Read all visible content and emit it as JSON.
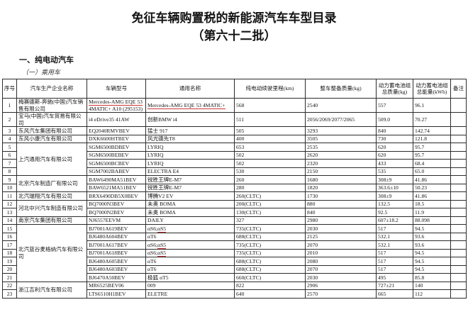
{
  "document": {
    "title": "免征车辆购置税的新能源汽车车型目录",
    "subtitle": "（第六十二批）",
    "section": "一、纯电动汽车",
    "subsection": "（一）乘用车"
  },
  "colors": {
    "spellcheck_underline": "#cc3333",
    "table_border": "#2b2b2b",
    "text": "#141414"
  },
  "table": {
    "headers": [
      "序号",
      "汽车生产企业名称",
      "车辆型号",
      "通用名称",
      "纯电动续驶里程(km)",
      "整车整备质量(kg)",
      "动力蓄电池组总质量(kg)",
      "动力蓄电池组总能量(kWh)",
      "备注"
    ],
    "rows": [
      {
        "no": "1",
        "manufacturer": "梅赛德斯-奔驰(中国)汽车销售有限公司",
        "manufacturer_span": 1,
        "model": "Mercedes-AMG EQE 53 4MATIC+ A10 (295153)",
        "model_mark": "Mercedes-AMG EQE 53 4MATIC+ A10 (295153)",
        "name": "Mercedes-AMG EQE 53 4MATIC+",
        "name_mark": "Mercedes-AMG EQE 53 4MATIC+",
        "range": "568",
        "mass": "2540",
        "battery_mass": "557",
        "energy": "96.1",
        "note": ""
      },
      {
        "no": "2",
        "manufacturer": "宝马(中国)汽车贸易有限公司",
        "manufacturer_span": 1,
        "model": "i4 eDrive35 41AW",
        "model_mark": null,
        "name": "创新BMW i4",
        "name_mark": null,
        "range": "511",
        "mass": "2056/2069/2077/2065",
        "battery_mass": "509.0",
        "energy": "70.27",
        "note": ""
      },
      {
        "no": "3",
        "manufacturer": "东风汽车集团有限公司",
        "manufacturer_span": 1,
        "model": "EQ2040RMVBEV",
        "model_mark": null,
        "name": "猛士 917",
        "name_mark": null,
        "range": "505",
        "mass": "3293",
        "battery_mass": "840",
        "energy": "142.74",
        "note": ""
      },
      {
        "no": "4",
        "manufacturer": "东风小康汽车有限公司",
        "manufacturer_span": 1,
        "model": "DXK6600HTBEV",
        "model_mark": null,
        "name": "风光德先T8",
        "name_mark": null,
        "range": "400",
        "mass": "3505",
        "battery_mass": "730",
        "energy": "121.8",
        "note": ""
      },
      {
        "no": "5",
        "manufacturer": "上汽通用汽车有限公司",
        "manufacturer_span": 4,
        "model": "SGM6500BDBEV",
        "model_mark": null,
        "name": "LYRIQ",
        "name_mark": null,
        "range": "653",
        "mass": "2535",
        "battery_mass": "620",
        "energy": "95.7",
        "note": ""
      },
      {
        "no": "6",
        "manufacturer": null,
        "model": "SGM6500BEBEV",
        "model_mark": null,
        "name": "LYRIQ",
        "name_mark": null,
        "range": "502",
        "mass": "2620",
        "battery_mass": "620",
        "energy": "95.7",
        "note": ""
      },
      {
        "no": "7",
        "manufacturer": null,
        "model": "SGM6500BCBEV",
        "model_mark": null,
        "name": "LYRIQ",
        "name_mark": null,
        "range": "502",
        "mass": "2320",
        "battery_mass": "433",
        "energy": "68.4",
        "note": ""
      },
      {
        "no": "8",
        "manufacturer": null,
        "model": "SGM7002BABEV",
        "model_mark": null,
        "name": "ELECTRA E4",
        "name_mark": null,
        "range": "530",
        "mass": "2150",
        "battery_mass": "535",
        "energy": "65.0",
        "note": ""
      },
      {
        "no": "9",
        "manufacturer": "北京汽车制造厂有限公司",
        "manufacturer_span": 2,
        "model": "BAW6490MA51BEV",
        "model_mark": null,
        "name": "锐胜王牌E-M7",
        "name_mark": null,
        "range": "260",
        "mass": "1680",
        "battery_mass": "308±9",
        "energy": "41.86",
        "note": ""
      },
      {
        "no": "10",
        "manufacturer": null,
        "model": "BAW6521MA51BEV",
        "model_mark": null,
        "name": "锐胜王牌E-M7",
        "name_mark": null,
        "range": "280",
        "mass": "1820",
        "battery_mass": "363.6±10",
        "energy": "50.23",
        "note": ""
      },
      {
        "no": "11",
        "manufacturer": "北汽瑞翔汽车有限公司",
        "manufacturer_span": 1,
        "model": "BRX6490DB5X0BEV",
        "model_mark": null,
        "name": "博腾V2 EV",
        "name_mark": null,
        "range": "260(CLTC)",
        "mass": "1730",
        "battery_mass": "308±9",
        "energy": "41.86",
        "note": ""
      },
      {
        "no": "12",
        "manufacturer": "河北中兴汽车制造有限公司",
        "manufacturer_span": 2,
        "model": "BQ7000N3BEV",
        "model_mark": null,
        "name": "未奥 BOMA",
        "name_mark": null,
        "range": "200(CLTC)",
        "mass": "880",
        "battery_mass": "132.5",
        "energy": "18.5",
        "note": ""
      },
      {
        "no": "13",
        "manufacturer": null,
        "model": "BQ7000N2BEV",
        "model_mark": null,
        "name": "未奥 BOMA",
        "name_mark": null,
        "range": "130(CLTC)",
        "mass": "840",
        "battery_mass": "92.5",
        "energy": "11.9",
        "note": ""
      },
      {
        "no": "14",
        "manufacturer": "南京汽车集团有限公司",
        "manufacturer_span": 1,
        "model": "NJ6557EEVM",
        "model_mark": null,
        "name": "DAILY",
        "name_mark": null,
        "range": "327",
        "mass": "2980",
        "battery_mass": "607±18.2",
        "energy": "88.098",
        "note": ""
      },
      {
        "no": "15",
        "manufacturer": "北汽蓝谷麦格纳汽车有限公司",
        "manufacturer_span": 7,
        "model": "BJ7001A619BEV",
        "model_mark": null,
        "name": "αS6;αS5",
        "name_mark": "αS5",
        "range": "735(CLTC)",
        "mass": "2030",
        "battery_mass": "517",
        "energy": "94.5",
        "note": ""
      },
      {
        "no": "16",
        "manufacturer": null,
        "model": "BJ6480A604BEV",
        "model_mark": null,
        "name": "αT6",
        "name_mark": null,
        "range": "688(CLTC)",
        "mass": "2125",
        "battery_mass": "532.1",
        "energy": "93.6",
        "note": ""
      },
      {
        "no": "17",
        "manufacturer": null,
        "model": "BJ7001A617BEV",
        "model_mark": null,
        "name": "αS6;αS5",
        "name_mark": "αS5",
        "range": "735(CLTC)",
        "mass": "2070",
        "battery_mass": "532.1",
        "energy": "93.6",
        "note": ""
      },
      {
        "no": "18",
        "manufacturer": null,
        "model": "BJ7001A618BEV",
        "model_mark": null,
        "name": "αS6;αS5",
        "name_mark": "αS5",
        "range": "735(CLTC)",
        "mass": "2010",
        "battery_mass": "517",
        "energy": "94.5",
        "note": ""
      },
      {
        "no": "19",
        "manufacturer": null,
        "model": "BJ6480A605BEV",
        "model_mark": null,
        "name": "αT6",
        "name_mark": null,
        "range": "688(CLTC)",
        "mass": "2080",
        "battery_mass": "517",
        "energy": "94.5",
        "note": ""
      },
      {
        "no": "20",
        "manufacturer": null,
        "model": "BJ6480A603BEV",
        "model_mark": null,
        "name": "αT6",
        "name_mark": null,
        "range": "688(CLTC)",
        "mass": "2070",
        "battery_mass": "517",
        "energy": "94.5",
        "note": ""
      },
      {
        "no": "21",
        "manufacturer": null,
        "model": "BJ6470A50BEV",
        "model_mark": null,
        "name": "极狐 αT5",
        "name_mark": null,
        "range": "660(CLTC)",
        "mass": "2030",
        "battery_mass": "495",
        "energy": "85.8",
        "note": ""
      },
      {
        "no": "22",
        "manufacturer": "浙江吉利汽车有限公司",
        "manufacturer_span": 2,
        "model": "MR6525BEV06",
        "model_mark": null,
        "name": "009",
        "name_mark": null,
        "range": "822",
        "mass": "2906",
        "battery_mass": "727±21",
        "energy": "140",
        "note": ""
      },
      {
        "no": "23",
        "manufacturer": null,
        "model": "LTS6510H1BEV",
        "model_mark": null,
        "name": "ELETRE",
        "name_mark": null,
        "range": "640",
        "mass": "2570",
        "battery_mass": "665",
        "energy": "112",
        "note": ""
      }
    ]
  }
}
